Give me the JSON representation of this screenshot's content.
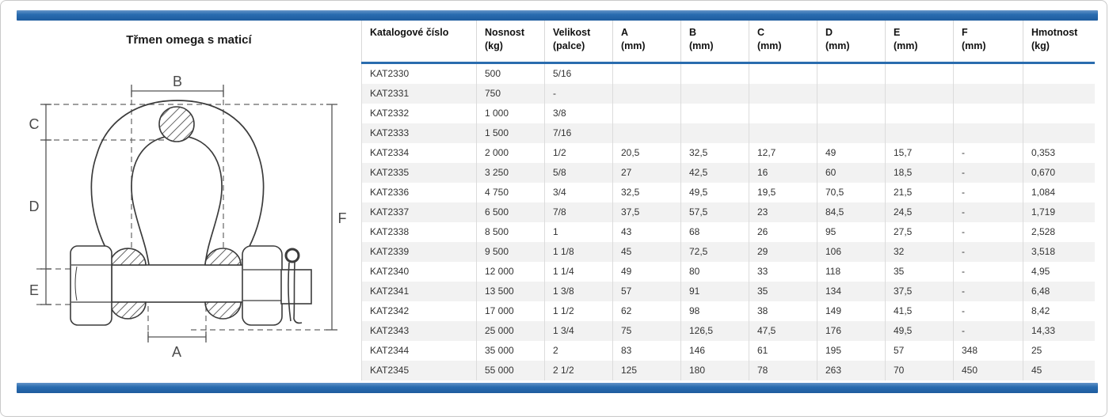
{
  "panel": {
    "title": "Třmen omega s maticí"
  },
  "drawing": {
    "labels": {
      "A": "A",
      "B": "B",
      "C": "C",
      "D": "D",
      "E": "E",
      "F": "F"
    }
  },
  "colors": {
    "accent_blue": "#2a6cb0",
    "header_rule_blue": "#2a6cae",
    "row_alt_gray": "#f2f2f2",
    "grid_line": "#dcdcdc"
  },
  "table": {
    "columns": [
      {
        "label": "Katalogové číslo",
        "unit": ""
      },
      {
        "label": "Nosnost",
        "unit": "(kg)"
      },
      {
        "label": "Velikost",
        "unit": "(palce)"
      },
      {
        "label": "A",
        "unit": "(mm)"
      },
      {
        "label": "B",
        "unit": "(mm)"
      },
      {
        "label": "C",
        "unit": "(mm)"
      },
      {
        "label": "D",
        "unit": "(mm)"
      },
      {
        "label": "E",
        "unit": "(mm)"
      },
      {
        "label": "F",
        "unit": "(mm)"
      },
      {
        "label": "Hmotnost",
        "unit": "(kg)"
      }
    ],
    "rows": [
      [
        "KAT2330",
        "500",
        "5/16",
        "",
        "",
        "",
        "",
        "",
        "",
        ""
      ],
      [
        "KAT2331",
        "750",
        "-",
        "",
        "",
        "",
        "",
        "",
        "",
        ""
      ],
      [
        "KAT2332",
        "1 000",
        "3/8",
        "",
        "",
        "",
        "",
        "",
        "",
        ""
      ],
      [
        "KAT2333",
        "1 500",
        "7/16",
        "",
        "",
        "",
        "",
        "",
        "",
        ""
      ],
      [
        "KAT2334",
        "2 000",
        "1/2",
        "20,5",
        "32,5",
        "12,7",
        "49",
        "15,7",
        "-",
        "0,353"
      ],
      [
        "KAT2335",
        "3 250",
        "5/8",
        "27",
        "42,5",
        "16",
        "60",
        "18,5",
        "-",
        "0,670"
      ],
      [
        "KAT2336",
        "4 750",
        "3/4",
        "32,5",
        "49,5",
        "19,5",
        "70,5",
        "21,5",
        "-",
        "1,084"
      ],
      [
        "KAT2337",
        "6 500",
        "7/8",
        "37,5",
        "57,5",
        "23",
        "84,5",
        "24,5",
        "-",
        "1,719"
      ],
      [
        "KAT2338",
        "8 500",
        "1",
        "43",
        "68",
        "26",
        "95",
        "27,5",
        "-",
        "2,528"
      ],
      [
        "KAT2339",
        "9 500",
        "1 1/8",
        "45",
        "72,5",
        "29",
        "106",
        "32",
        "-",
        "3,518"
      ],
      [
        "KAT2340",
        "12 000",
        "1 1/4",
        "49",
        "80",
        "33",
        "118",
        "35",
        "-",
        "4,95"
      ],
      [
        "KAT2341",
        "13 500",
        "1 3/8",
        "57",
        "91",
        "35",
        "134",
        "37,5",
        "-",
        "6,48"
      ],
      [
        "KAT2342",
        "17 000",
        "1 1/2",
        "62",
        "98",
        "38",
        "149",
        "41,5",
        "-",
        "8,42"
      ],
      [
        "KAT2343",
        "25 000",
        "1 3/4",
        "75",
        "126,5",
        "47,5",
        "176",
        "49,5",
        "-",
        "14,33"
      ],
      [
        "KAT2344",
        "35 000",
        "2",
        "83",
        "146",
        "61",
        "195",
        "57",
        "348",
        "25"
      ],
      [
        "KAT2345",
        "55 000",
        "2 1/2",
        "125",
        "180",
        "78",
        "263",
        "70",
        "450",
        "45"
      ]
    ]
  }
}
